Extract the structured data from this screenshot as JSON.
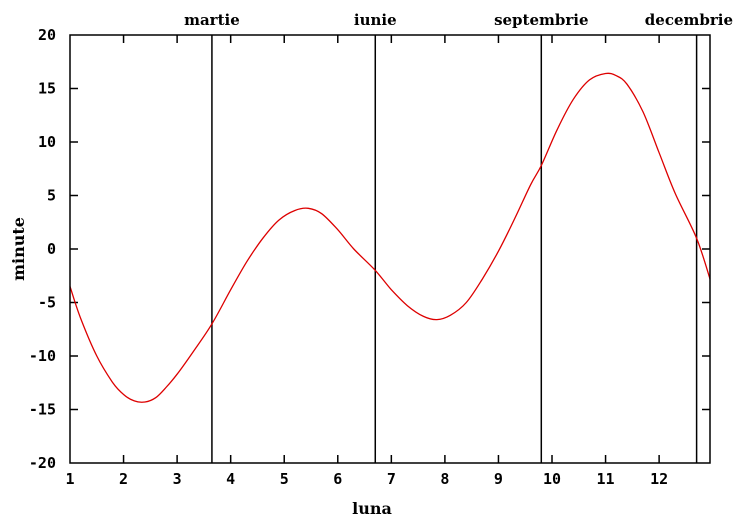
{
  "chart_data": {
    "type": "line",
    "title": "",
    "xlabel": "luna",
    "ylabel": "minute",
    "xlim": [
      1,
      12.95
    ],
    "ylim": [
      -20,
      20
    ],
    "grid": false,
    "legend": "none",
    "x_ticks": [
      1,
      2,
      3,
      4,
      5,
      6,
      7,
      8,
      9,
      10,
      11,
      12
    ],
    "y_ticks": [
      20,
      15,
      10,
      5,
      0,
      -5,
      -10,
      -15,
      -20
    ],
    "markers": [
      {
        "x": 3.65,
        "label": "martie"
      },
      {
        "x": 6.7,
        "label": "iunie"
      },
      {
        "x": 9.8,
        "label": "septembrie"
      },
      {
        "x": 12.7,
        "label": "decembrie"
      }
    ],
    "series": [
      {
        "color": "#dd0000",
        "x": [
          1.0,
          1.2,
          1.5,
          1.8,
          2.0,
          2.2,
          2.4,
          2.6,
          2.8,
          3.0,
          3.3,
          3.65,
          4.0,
          4.3,
          4.6,
          4.9,
          5.2,
          5.45,
          5.7,
          6.0,
          6.3,
          6.7,
          7.0,
          7.3,
          7.6,
          7.85,
          8.1,
          8.4,
          8.7,
          9.0,
          9.3,
          9.6,
          9.8,
          10.1,
          10.4,
          10.7,
          11.0,
          11.2,
          11.4,
          11.7,
          12.0,
          12.3,
          12.7,
          12.95
        ],
        "y": [
          -3.5,
          -6.5,
          -10.0,
          -12.5,
          -13.6,
          -14.2,
          -14.3,
          -13.9,
          -12.9,
          -11.7,
          -9.6,
          -7.0,
          -3.8,
          -1.2,
          1.0,
          2.7,
          3.6,
          3.8,
          3.3,
          1.8,
          0.0,
          -2.0,
          -3.8,
          -5.3,
          -6.3,
          -6.6,
          -6.2,
          -5.0,
          -2.8,
          -0.2,
          2.8,
          6.0,
          7.8,
          11.2,
          14.0,
          15.8,
          16.4,
          16.2,
          15.4,
          12.8,
          9.0,
          5.2,
          1.0,
          -2.8
        ]
      }
    ]
  }
}
